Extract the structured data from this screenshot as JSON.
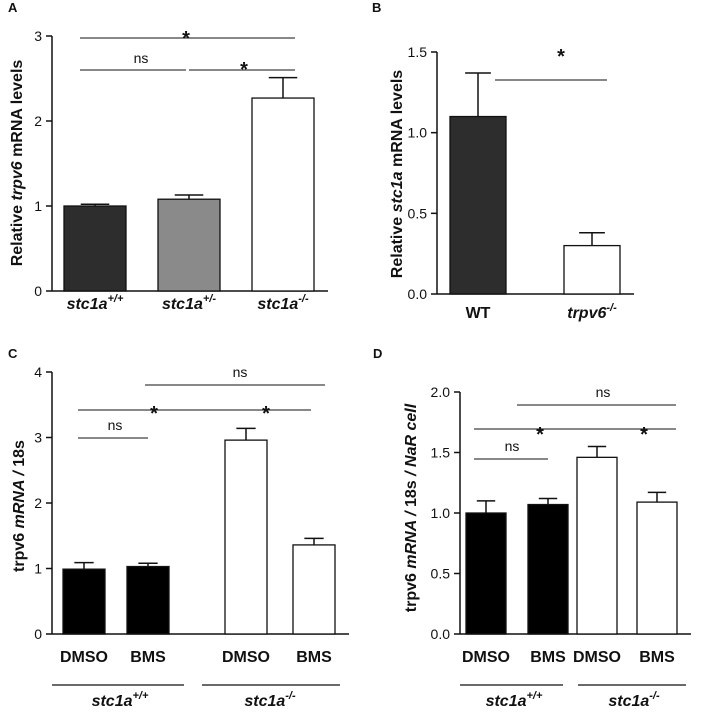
{
  "chart_data": [
    {
      "panel": "A",
      "type": "bar",
      "categories": [
        {
          "base": "stc1a",
          "sup": "+/+"
        },
        {
          "base": "stc1a",
          "sup": "+/-"
        },
        {
          "base": "stc1a",
          "sup": "-/-"
        }
      ],
      "values": [
        1.0,
        1.08,
        2.27
      ],
      "errors": [
        0.02,
        0.05,
        0.24
      ],
      "colors": [
        "#2d2d2d",
        "#8a8a8a",
        "#ffffff"
      ],
      "ylabel_parts": [
        "Relative ",
        "trpv6",
        " mRNA levels"
      ],
      "ylim": [
        0,
        3
      ],
      "yticks": [
        "0",
        "1",
        "2",
        "3"
      ],
      "comparisons": [
        {
          "from": 0,
          "to": 1,
          "label": "ns"
        },
        {
          "from": 1,
          "to": 2,
          "label": "*"
        },
        {
          "from": 0,
          "to": 2,
          "label": "*"
        }
      ]
    },
    {
      "panel": "B",
      "type": "bar",
      "categories": [
        {
          "base": "WT",
          "sup": ""
        },
        {
          "base": "trpv6",
          "sup": "-/-"
        }
      ],
      "values": [
        1.1,
        0.3
      ],
      "errors": [
        0.27,
        0.08
      ],
      "colors": [
        "#2d2d2d",
        "#ffffff"
      ],
      "ylabel_parts": [
        "Relative ",
        "stc1a",
        " mRNA levels"
      ],
      "ylim": [
        0,
        1.5
      ],
      "yticks": [
        "0.0",
        "0.5",
        "1.0",
        "1.5"
      ],
      "comparisons": [
        {
          "from": 0,
          "to": 1,
          "label": "*"
        }
      ]
    },
    {
      "panel": "C",
      "type": "bar",
      "categories": [
        "DMSO",
        "BMS",
        "DMSO",
        "BMS"
      ],
      "groups": [
        {
          "base": "stc1a",
          "sup": "+/+"
        },
        {
          "base": "stc1a",
          "sup": "-/-"
        }
      ],
      "values": [
        0.99,
        1.03,
        2.96,
        1.36
      ],
      "errors": [
        0.1,
        0.05,
        0.18,
        0.1
      ],
      "colors": [
        "#000000",
        "#000000",
        "#ffffff",
        "#ffffff"
      ],
      "ylabel_parts": [
        "trpv6",
        " mRNA / ",
        "18s"
      ],
      "ylim": [
        0,
        4
      ],
      "yticks": [
        "0",
        "1",
        "2",
        "3",
        "4"
      ],
      "comparisons": [
        {
          "from": 0,
          "to": 1,
          "label": "ns"
        },
        {
          "from": 0,
          "to": 2,
          "label": "*"
        },
        {
          "from": 2,
          "to": 3,
          "label": "*"
        },
        {
          "from": 1,
          "to": 3,
          "label": "ns"
        }
      ]
    },
    {
      "panel": "D",
      "type": "bar",
      "categories": [
        "DMSO",
        "BMS",
        "DMSO",
        "BMS"
      ],
      "groups": [
        {
          "base": "stc1a",
          "sup": "+/+"
        },
        {
          "base": "stc1a",
          "sup": "-/-"
        }
      ],
      "values": [
        1.0,
        1.07,
        1.46,
        1.09
      ],
      "errors": [
        0.1,
        0.05,
        0.09,
        0.08
      ],
      "colors": [
        "#000000",
        "#000000",
        "#ffffff",
        "#ffffff"
      ],
      "ylabel_parts": [
        "trpv6",
        " mRNA / ",
        "18s",
        "  / NaR cell"
      ],
      "ylim": [
        0,
        2
      ],
      "yticks": [
        "0.0",
        "0.5",
        "1.0",
        "1.5",
        "2.0"
      ],
      "comparisons": [
        {
          "from": 0,
          "to": 1,
          "label": "ns"
        },
        {
          "from": 0,
          "to": 2,
          "label": "*"
        },
        {
          "from": 2,
          "to": 3,
          "label": "*"
        },
        {
          "from": 1,
          "to": 3,
          "label": "ns"
        }
      ]
    }
  ]
}
